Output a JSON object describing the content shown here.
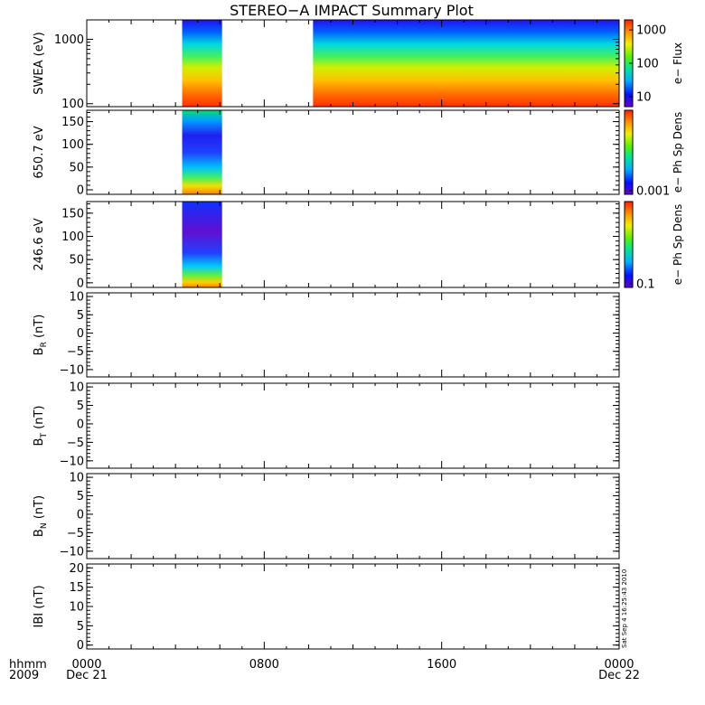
{
  "title": "STEREO−A IMPACT Summary Plot",
  "stamp": "Sat Sep  4 16:25:43 2010",
  "time_axis": {
    "row1_label": "hhmm",
    "row2_label": "2009",
    "ticks": [
      {
        "hour": 0,
        "label": "0000",
        "date": "Dec 21"
      },
      {
        "hour": 8,
        "label": "0800",
        "date": ""
      },
      {
        "hour": 16,
        "label": "1600",
        "date": ""
      },
      {
        "hour": 24,
        "label": "0000",
        "date": "Dec 22"
      }
    ]
  },
  "colors": {
    "spectrum": [
      "#6a00cc",
      "#0010ff",
      "#00b0ff",
      "#00e890",
      "#60f000",
      "#f0f000",
      "#ff9000",
      "#ff2000"
    ]
  },
  "chart_data": [
    {
      "type": "heatmap",
      "name": "swea",
      "ylabel": "SWEA (eV)",
      "yscale": "log",
      "ylim": [
        90,
        2000
      ],
      "yticks": [
        {
          "v": 100,
          "l": "100"
        },
        {
          "v": 1000,
          "l": "1000"
        }
      ],
      "colorbar": {
        "label": "e− Flux",
        "scale": "log",
        "range": [
          5,
          2000
        ],
        "ticks": [
          {
            "v": 10,
            "l": "10"
          },
          {
            "v": 100,
            "l": "100"
          },
          {
            "v": 1000,
            "l": "1000"
          }
        ]
      },
      "data_intervals_hours": [
        [
          4.3,
          6.1
        ],
        [
          10.2,
          24.0
        ]
      ]
    },
    {
      "type": "heatmap",
      "name": "pad-650",
      "ylabel": "650.7 eV",
      "yscale": "linear",
      "ylim": [
        -10,
        175
      ],
      "yticks": [
        {
          "v": 0,
          "l": "0"
        },
        {
          "v": 50,
          "l": "50"
        },
        {
          "v": 100,
          "l": "100"
        },
        {
          "v": 150,
          "l": "150"
        }
      ],
      "colorbar": {
        "label": "e− Ph Sp Dens",
        "scale": "log",
        "ticks": [
          {
            "v": 0,
            "l": "0.001"
          }
        ]
      },
      "data_intervals_hours": [
        [
          4.3,
          6.1
        ]
      ]
    },
    {
      "type": "heatmap",
      "name": "pad-246",
      "ylabel": "246.6 eV",
      "yscale": "linear",
      "ylim": [
        -10,
        175
      ],
      "yticks": [
        {
          "v": 0,
          "l": "0"
        },
        {
          "v": 50,
          "l": "50"
        },
        {
          "v": 100,
          "l": "100"
        },
        {
          "v": 150,
          "l": "150"
        }
      ],
      "colorbar": {
        "label": "e− Ph Sp Dens",
        "scale": "log",
        "ticks": [
          {
            "v": 0,
            "l": "0.1"
          }
        ]
      },
      "data_intervals_hours": [
        [
          4.3,
          6.1
        ]
      ]
    },
    {
      "type": "line",
      "name": "br",
      "ylabel_main": "B",
      "ylabel_sub": "R",
      "ylabel_tail": " (nT)",
      "ylim": [
        -12,
        11
      ],
      "yticks": [
        {
          "v": -10,
          "l": "−10"
        },
        {
          "v": -5,
          "l": "−5"
        },
        {
          "v": 0,
          "l": "0"
        },
        {
          "v": 5,
          "l": "5"
        },
        {
          "v": 10,
          "l": "10"
        }
      ],
      "series": []
    },
    {
      "type": "line",
      "name": "bt",
      "ylabel_main": "B",
      "ylabel_sub": "T",
      "ylabel_tail": " (nT)",
      "ylim": [
        -12,
        11
      ],
      "yticks": [
        {
          "v": -10,
          "l": "−10"
        },
        {
          "v": -5,
          "l": "−5"
        },
        {
          "v": 0,
          "l": "0"
        },
        {
          "v": 5,
          "l": "5"
        },
        {
          "v": 10,
          "l": "10"
        }
      ],
      "series": []
    },
    {
      "type": "line",
      "name": "bn",
      "ylabel_main": "B",
      "ylabel_sub": "N",
      "ylabel_tail": " (nT)",
      "ylim": [
        -12,
        11
      ],
      "yticks": [
        {
          "v": -10,
          "l": "−10"
        },
        {
          "v": -5,
          "l": "−5"
        },
        {
          "v": 0,
          "l": "0"
        },
        {
          "v": 5,
          "l": "5"
        },
        {
          "v": 10,
          "l": "10"
        }
      ],
      "series": []
    },
    {
      "type": "line",
      "name": "bmag",
      "ylabel_main": "IBI (nT)",
      "ylabel_sub": "",
      "ylabel_tail": "",
      "ylim": [
        -1,
        21
      ],
      "yticks": [
        {
          "v": 0,
          "l": "0"
        },
        {
          "v": 5,
          "l": "5"
        },
        {
          "v": 10,
          "l": "10"
        },
        {
          "v": 15,
          "l": "15"
        },
        {
          "v": 20,
          "l": "20"
        }
      ],
      "series": []
    }
  ]
}
